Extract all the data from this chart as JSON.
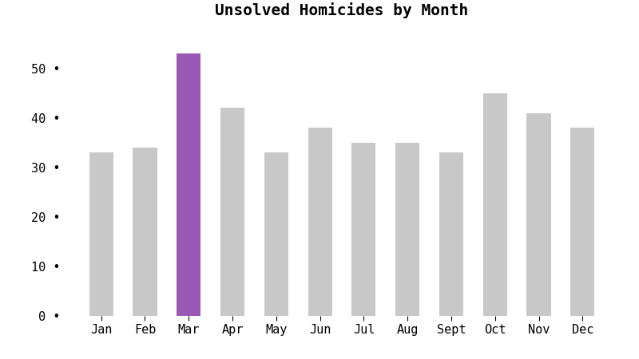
{
  "title": "Unsolved Homicides by Month",
  "months": [
    "Jan",
    "Feb",
    "Mar",
    "Apr",
    "May",
    "Jun",
    "Jul",
    "Aug",
    "Sept",
    "Oct",
    "Nov",
    "Dec"
  ],
  "values": [
    33,
    34,
    53,
    42,
    33,
    38,
    35,
    35,
    33,
    45,
    41,
    38
  ],
  "bar_colors": [
    "#c8c8c8",
    "#c8c8c8",
    "#9b59b6",
    "#c8c8c8",
    "#c8c8c8",
    "#c8c8c8",
    "#c8c8c8",
    "#c8c8c8",
    "#c8c8c8",
    "#c8c8c8",
    "#c8c8c8",
    "#c8c8c8"
  ],
  "ylim": [
    0,
    58
  ],
  "yticks": [
    0,
    10,
    20,
    30,
    40,
    50
  ],
  "background_color": "#ffffff",
  "title_fontsize": 14,
  "tick_fontsize": 11
}
